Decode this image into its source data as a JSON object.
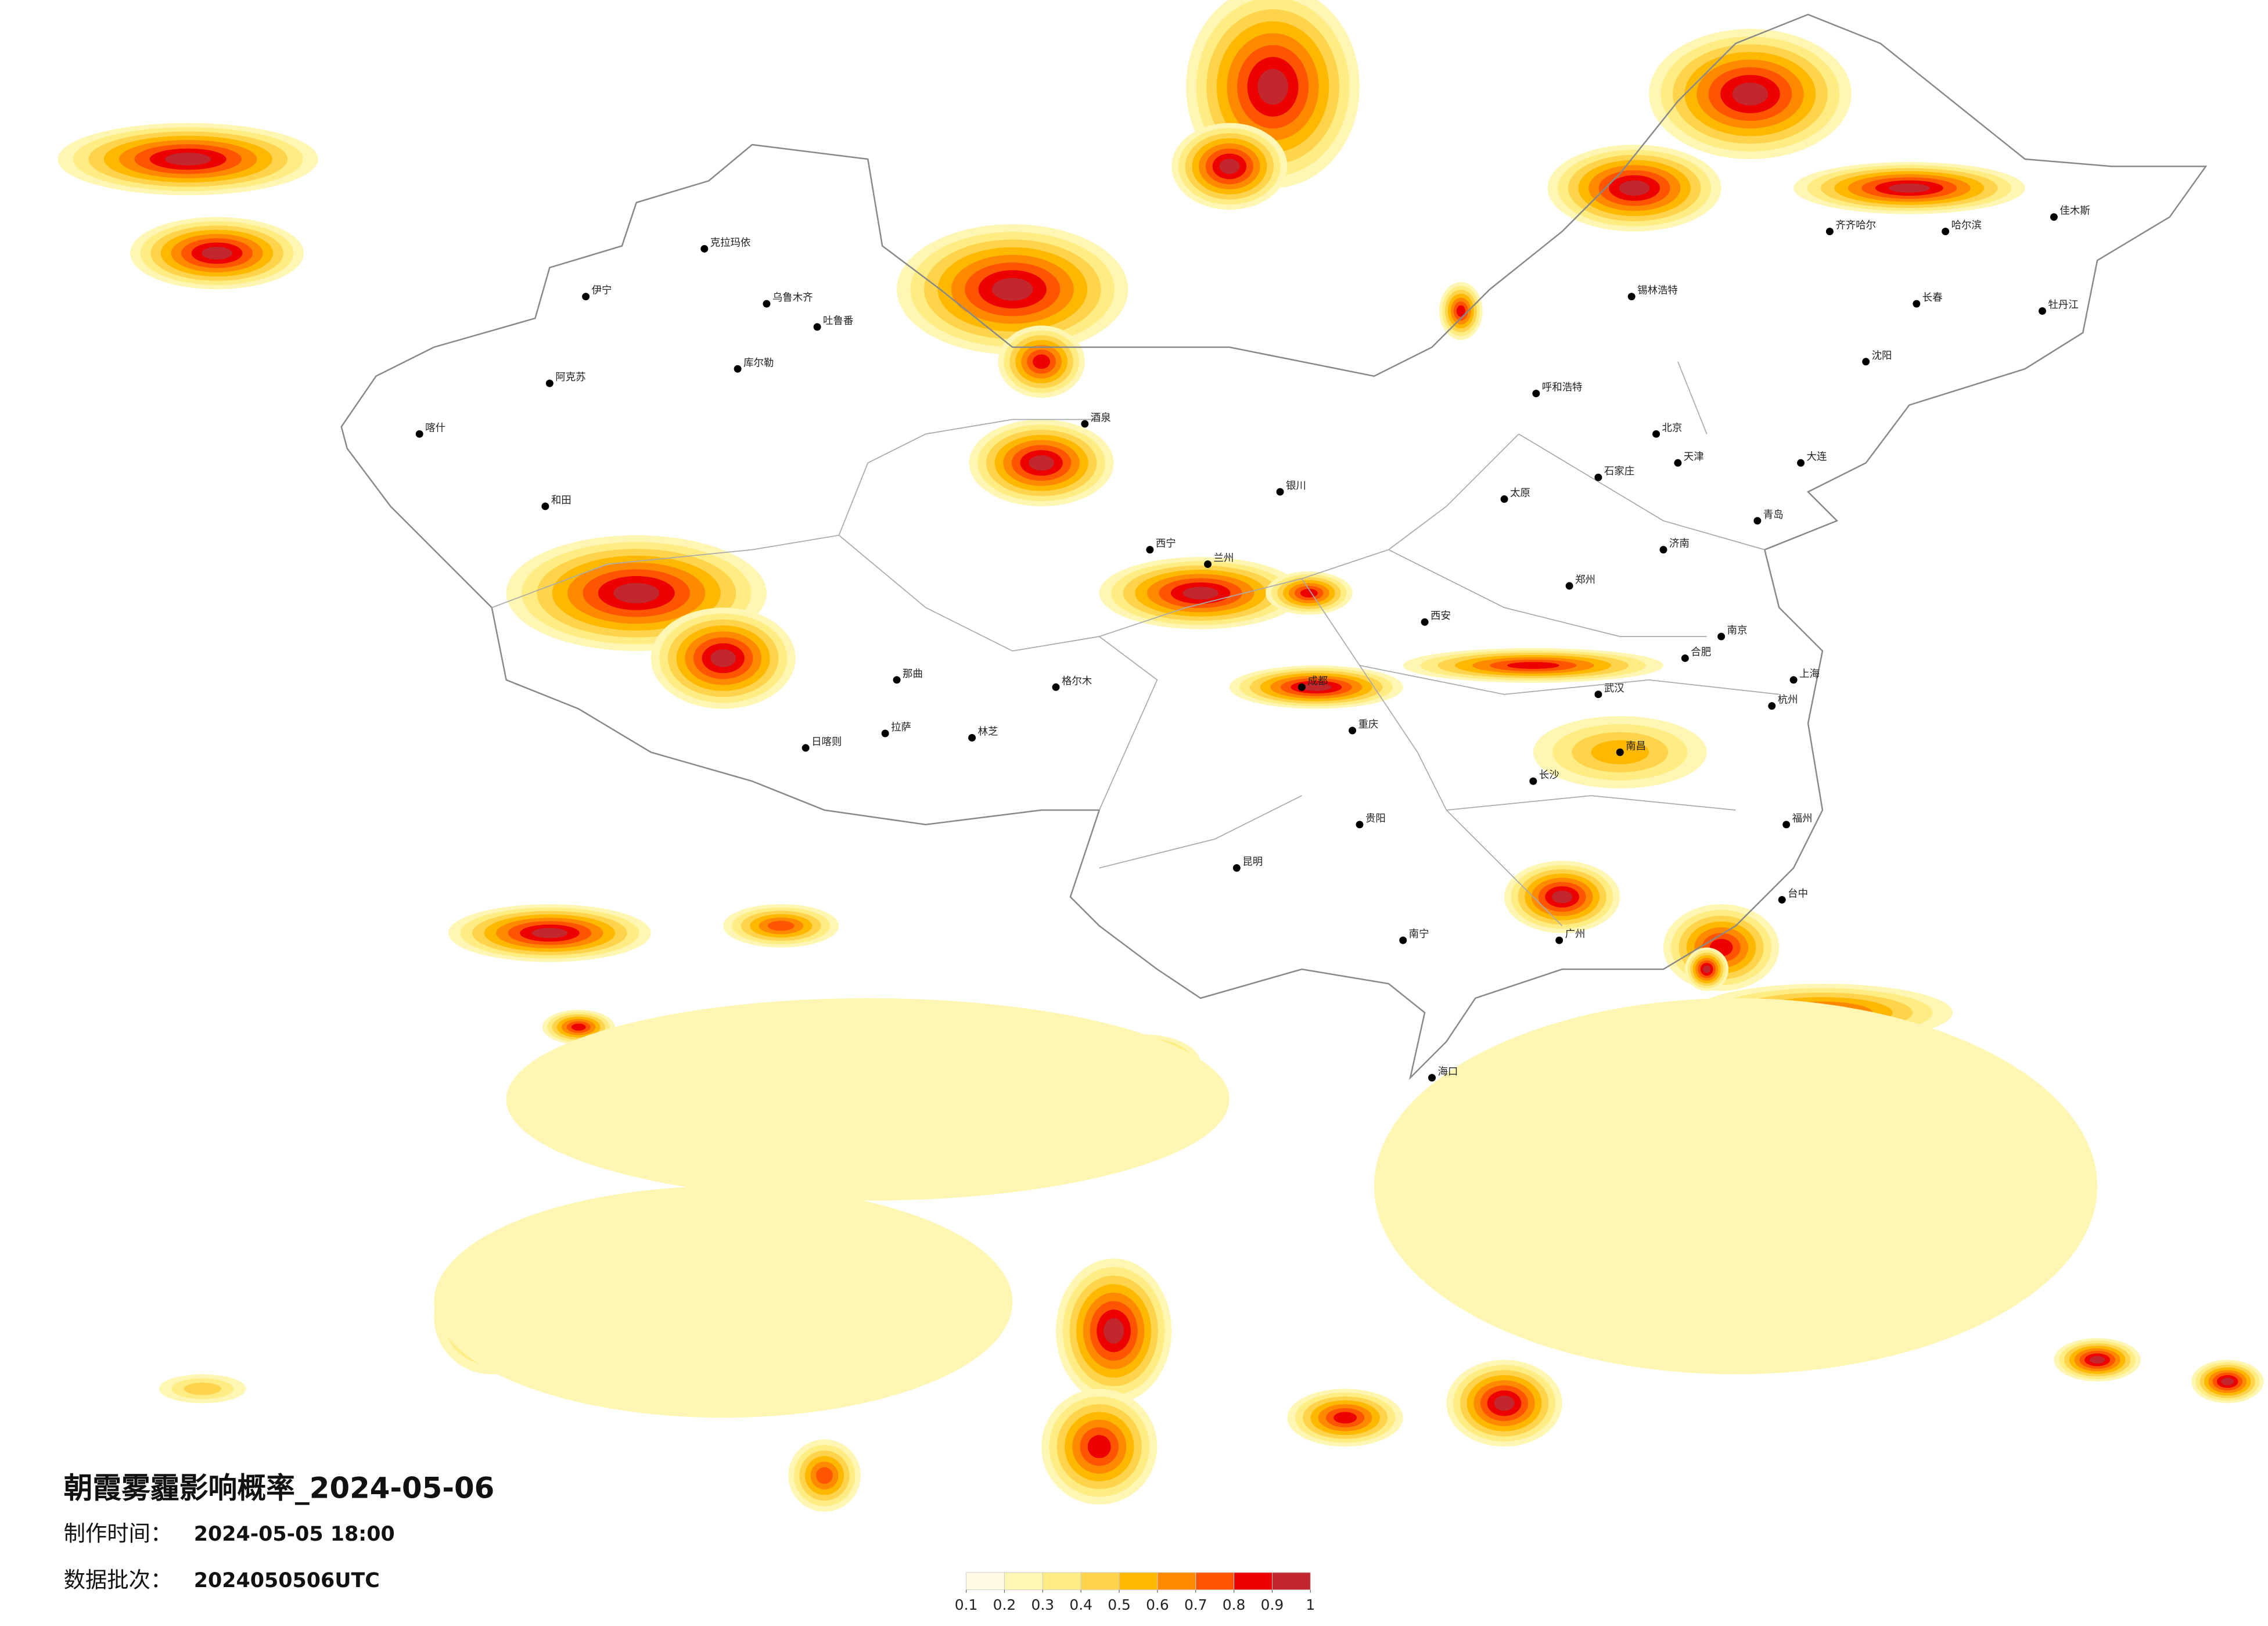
{
  "header": {
    "title": "朝霞雾霾影响概率_2024-05-06",
    "made_label": "制作时间：",
    "made_time": "2024-05-05 18:00",
    "batch_label": "数据批次：",
    "batch": "2024050506UTC"
  },
  "legend": {
    "ticks": [
      0.1,
      0.2,
      0.3,
      0.4,
      0.5,
      0.6,
      0.7,
      0.8,
      0.9,
      1
    ],
    "colors": [
      "#fffbe3",
      "#fff6b4",
      "#ffec82",
      "#ffd44c",
      "#ffb800",
      "#ff8a00",
      "#ff5500",
      "#ec0000",
      "#c1272d"
    ]
  },
  "cities": [
    "北京",
    "上海",
    "广州",
    "成都",
    "重庆",
    "武汉",
    "西安",
    "拉萨",
    "乌鲁木齐",
    "哈尔滨",
    "长春",
    "沈阳",
    "昆明",
    "贵阳",
    "南宁",
    "兰州",
    "西宁",
    "呼和浩特",
    "银川",
    "郑州",
    "南京",
    "杭州",
    "福州",
    "海口",
    "伊宁",
    "喀什",
    "和田",
    "克拉玛依",
    "吐鲁番",
    "库尔勒",
    "阿克苏",
    "日喀则",
    "林芝",
    "那曲",
    "台中",
    "长沙",
    "南昌",
    "济南",
    "石家庄",
    "太原",
    "合肥",
    "天津",
    "大连",
    "青岛",
    "锡林浩特",
    "齐齐哈尔",
    "佳木斯",
    "牡丹江",
    "格尔木",
    "酒泉"
  ]
}
